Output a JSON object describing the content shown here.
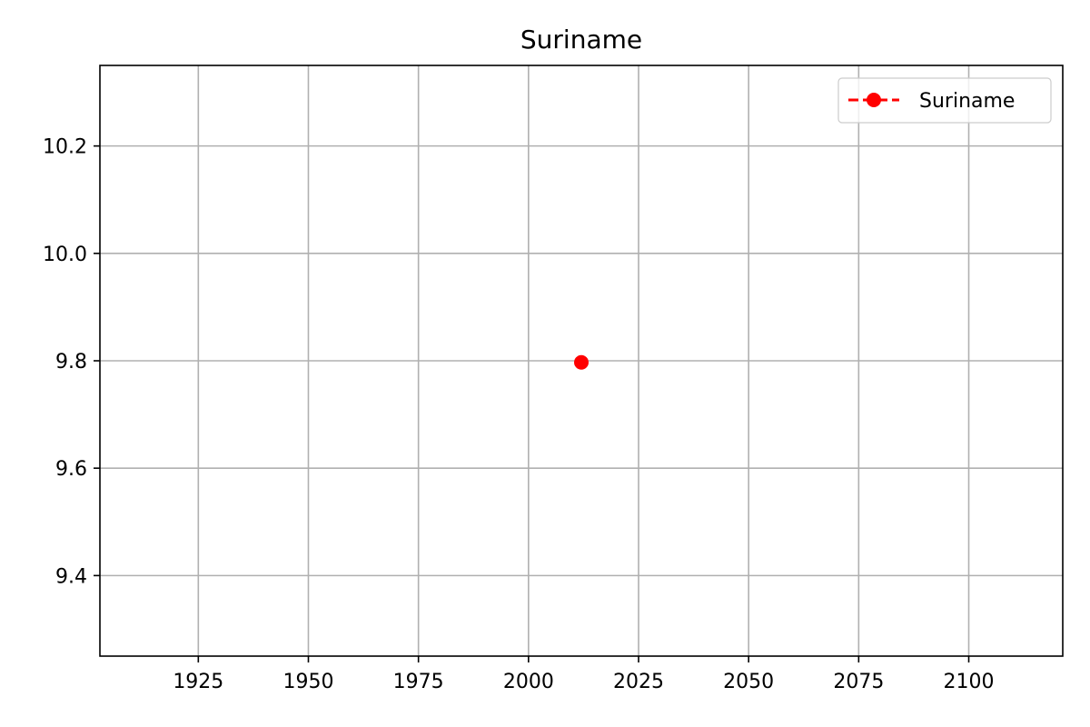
{
  "chart_data": {
    "type": "line",
    "title": "Suriname",
    "xlabel": "",
    "ylabel": "",
    "xlim": [
      1902.65,
      2121.35
    ],
    "ylim": [
      9.25,
      10.35
    ],
    "x_ticks": [
      1925,
      1950,
      1975,
      2000,
      2025,
      2050,
      2075,
      2100
    ],
    "x_tick_labels": [
      "1925",
      "1950",
      "1975",
      "2000",
      "2025",
      "2050",
      "2075",
      "2100"
    ],
    "y_ticks": [
      9.4,
      9.6,
      9.8,
      10.0,
      10.2
    ],
    "y_tick_labels": [
      "9.4",
      "9.6",
      "9.8",
      "10.0",
      "10.2"
    ],
    "grid": true,
    "legend_position": "top-right",
    "series": [
      {
        "name": "Suriname",
        "color": "#ff0000",
        "line_style": "dashed",
        "marker": "circle",
        "x": [
          2012
        ],
        "y": [
          9.797
        ]
      }
    ]
  }
}
